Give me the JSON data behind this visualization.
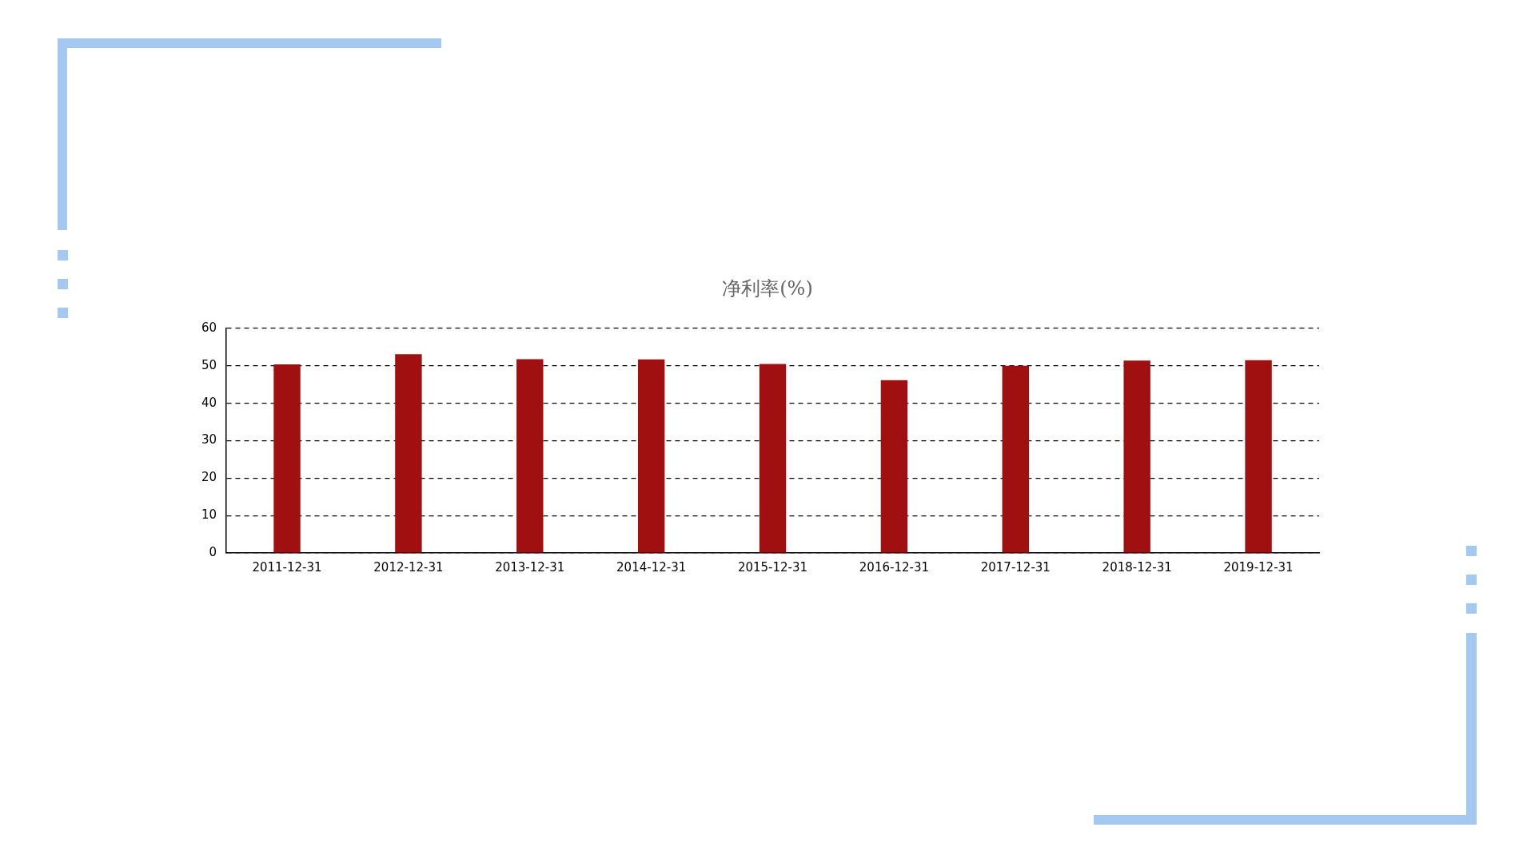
{
  "chart_data": {
    "type": "bar",
    "title": "净利率(%)",
    "categories": [
      "2011-12-31",
      "2012-12-31",
      "2013-12-31",
      "2014-12-31",
      "2015-12-31",
      "2016-12-31",
      "2017-12-31",
      "2018-12-31",
      "2019-12-31"
    ],
    "values": [
      50.4,
      53.1,
      51.8,
      51.7,
      50.5,
      46.2,
      50.0,
      51.4,
      51.5
    ],
    "color": "#a01010",
    "ylim": [
      0,
      60
    ],
    "yticks": [
      0,
      10,
      20,
      30,
      40,
      50,
      60
    ],
    "grid": "y",
    "legend": false
  }
}
